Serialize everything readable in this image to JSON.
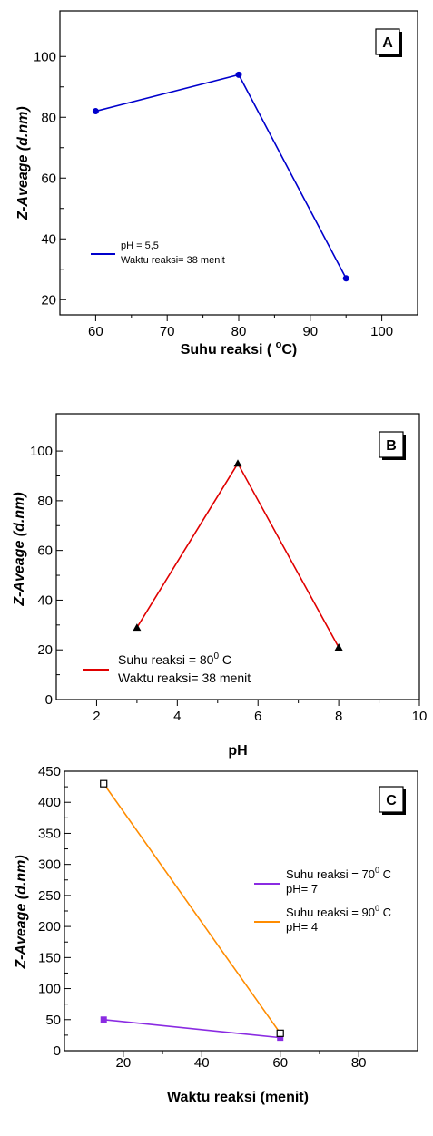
{
  "chart_data": [
    {
      "type": "line",
      "panel_label": "A",
      "ylabel": "Z-Aveage (d.nm)",
      "xlabel": "Suhu reaksi ( ",
      "xlabel_sup": "o",
      "xlabel_end": "C)",
      "xlim": [
        55,
        105
      ],
      "ylim": [
        15,
        115
      ],
      "xticks": [
        60,
        70,
        80,
        90,
        100
      ],
      "yticks": [
        20,
        40,
        60,
        80,
        100
      ],
      "series": [
        {
          "name": "pH = 5,5",
          "name2": "Waktu reaksi= 38 menit",
          "color": "#0000cc",
          "marker": "circle",
          "x": [
            60,
            80,
            95
          ],
          "y": [
            82,
            94,
            27
          ]
        }
      ]
    },
    {
      "type": "line",
      "panel_label": "B",
      "ylabel": "Z-Aveage (d.nm)",
      "xlabel": "pH",
      "xlim": [
        1,
        10
      ],
      "ylim": [
        0,
        115
      ],
      "xticks": [
        2,
        4,
        6,
        8,
        10
      ],
      "yticks": [
        0,
        20,
        40,
        60,
        80,
        100
      ],
      "series": [
        {
          "name": "Suhu reaksi = 80",
          "name_sup": "0",
          "name_end": " C",
          "name2": "Waktu reaksi= 38 menit",
          "color": "#e00000",
          "marker": "triangle",
          "x": [
            3,
            5.5,
            8
          ],
          "y": [
            29,
            95,
            21
          ]
        }
      ]
    },
    {
      "type": "line",
      "panel_label": "C",
      "ylabel": "Z-Aveage (d.nm)",
      "xlabel": "Waktu reaksi (menit)",
      "xlim": [
        5,
        95
      ],
      "ylim": [
        0,
        450
      ],
      "xticks": [
        20,
        40,
        60,
        80
      ],
      "yticks": [
        0,
        50,
        100,
        150,
        200,
        250,
        300,
        350,
        400,
        450
      ],
      "series": [
        {
          "name": "Suhu reaksi = 70",
          "name_sup": "0",
          "name_end": " C",
          "name2": "pH= 7",
          "color": "#8a2be2",
          "marker": "square-filled",
          "x": [
            15,
            60
          ],
          "y": [
            50,
            21
          ]
        },
        {
          "name": "Suhu reaksi = 90",
          "name_sup": "0",
          "name_end": " C",
          "name2": "pH= 4",
          "color": "#ff8c00",
          "marker": "square-open",
          "x": [
            15,
            60
          ],
          "y": [
            430,
            28
          ]
        }
      ]
    }
  ]
}
